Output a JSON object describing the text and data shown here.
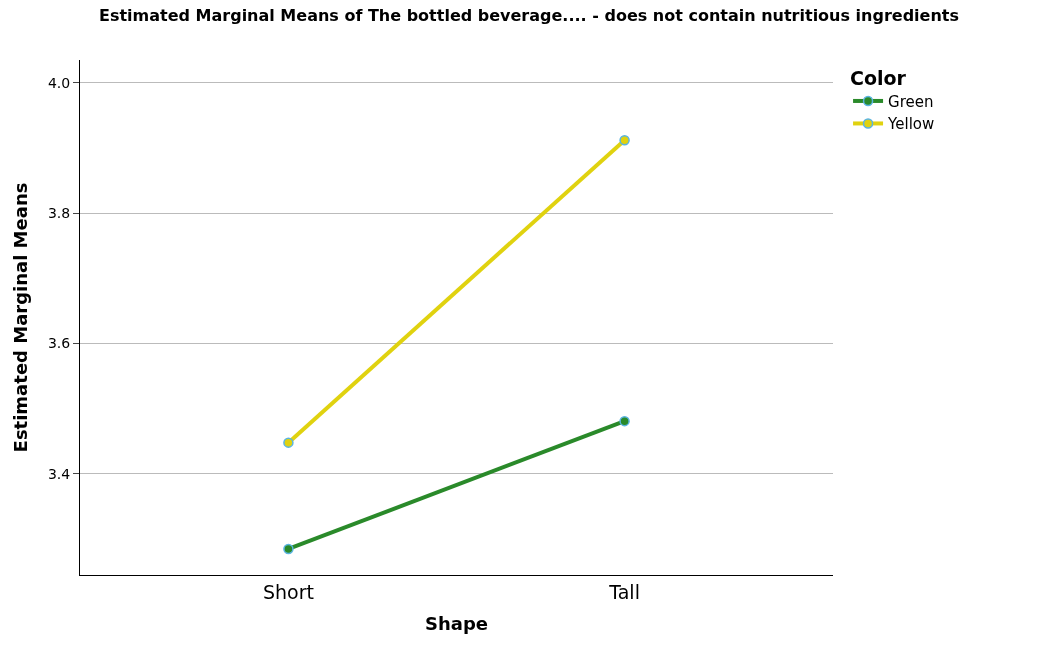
{
  "chart_data": {
    "type": "line",
    "title": "Estimated Marginal Means of The bottled beverage.... - does not contain nutritious ingredients",
    "xlabel": "Shape",
    "ylabel": "Estimated Marginal Means",
    "legend_title": "Color",
    "categories": [
      "Short",
      "Tall"
    ],
    "series": [
      {
        "name": "Green",
        "color": "#2a8a2a",
        "values": [
          3.285,
          3.481
        ]
      },
      {
        "name": "Yellow",
        "color": "#e0d20f",
        "values": [
          3.448,
          3.912
        ]
      }
    ],
    "ylim": [
      3.245,
      4.035
    ],
    "yticks": [
      {
        "value": 3.4,
        "label": "3.4"
      },
      {
        "value": 3.6,
        "label": "3.6"
      },
      {
        "value": 3.8,
        "label": "3.8"
      },
      {
        "value": 4.0,
        "label": "4.0"
      }
    ],
    "grid": "y",
    "legend": "top right",
    "marker": "circle",
    "line_style": "solid"
  }
}
